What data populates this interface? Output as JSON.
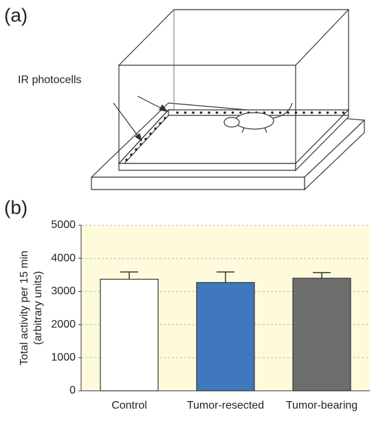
{
  "panels": [
    "(a)",
    "(b)"
  ],
  "diagram": {
    "label": "IR photocells"
  },
  "chart_data": {
    "type": "bar",
    "categories": [
      "Control",
      "Tumor-resected",
      "Tumor-bearing"
    ],
    "values": [
      3370,
      3270,
      3400
    ],
    "errors": [
      220,
      320,
      170
    ],
    "colors": [
      "#ffffff",
      "#3f78bd",
      "#6e6e6e"
    ],
    "ylabel": [
      "Total activity per 15 min",
      "(arbitrary units)"
    ],
    "ylim": [
      0,
      5000
    ],
    "yticks": [
      0,
      1000,
      2000,
      3000,
      4000,
      5000
    ],
    "grid": true
  }
}
